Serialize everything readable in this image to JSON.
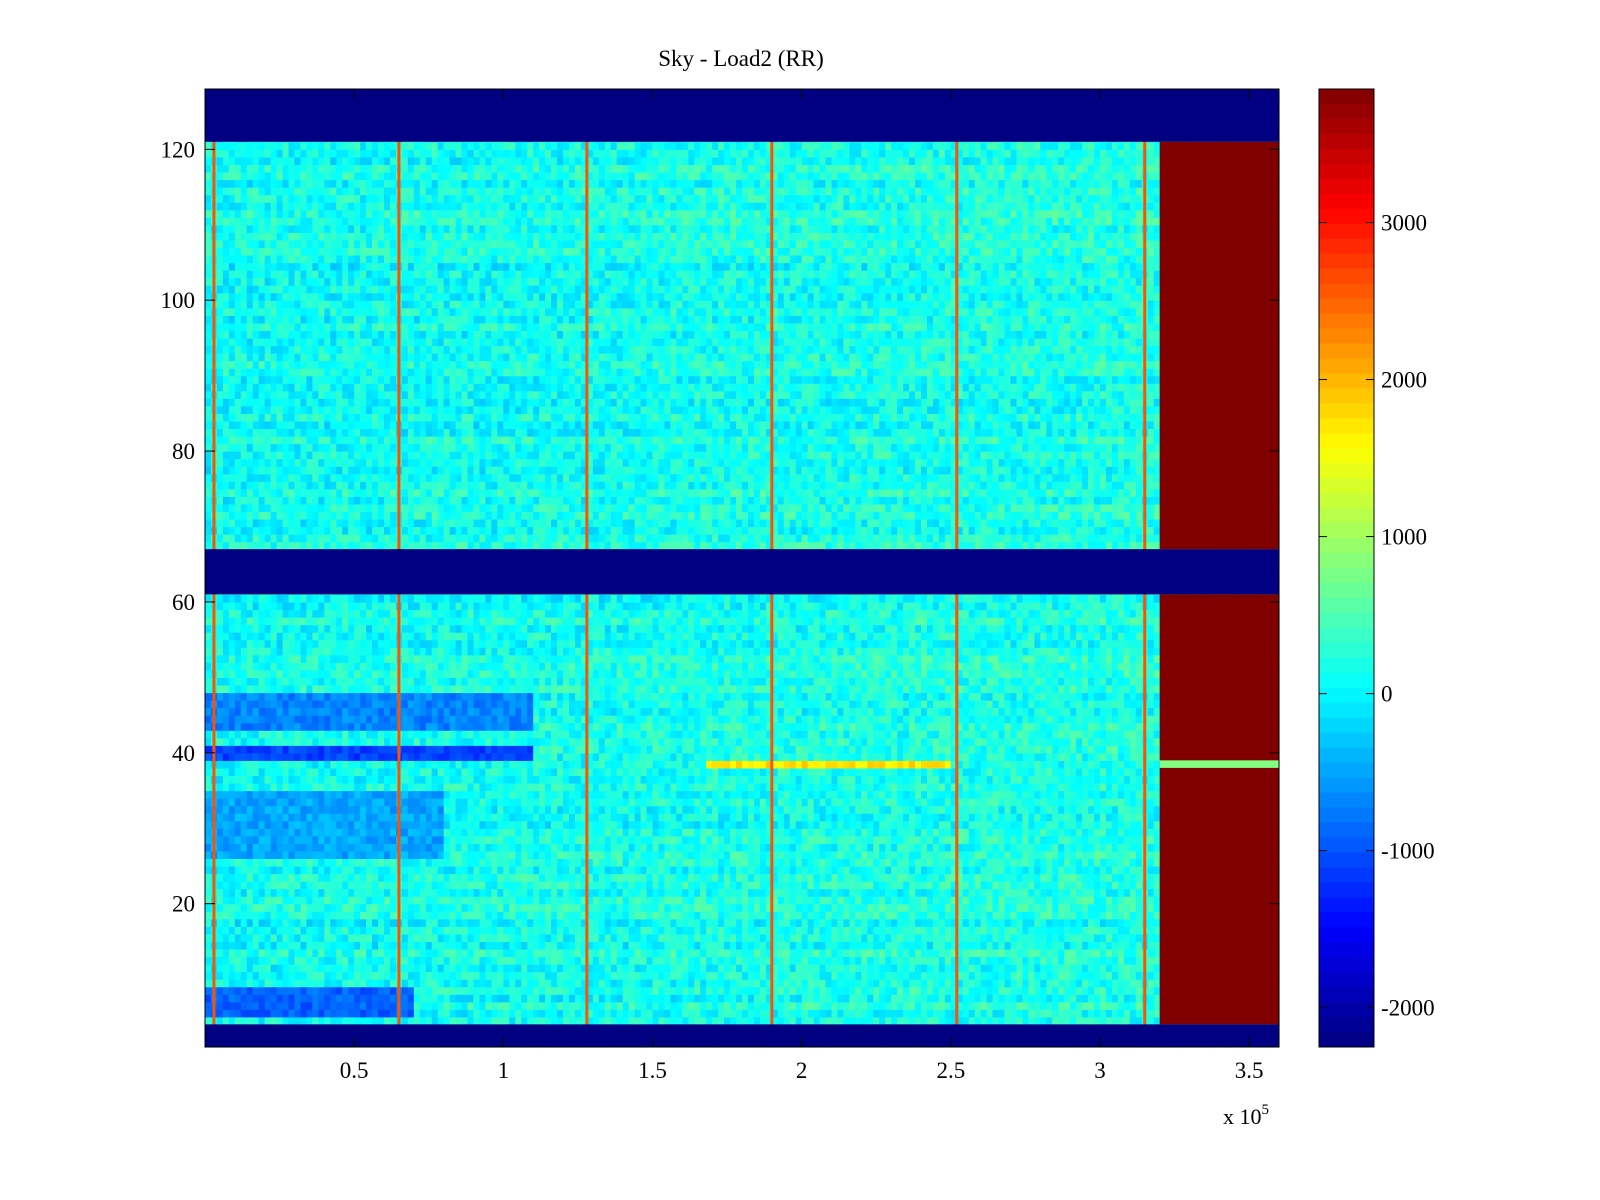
{
  "chart_data": {
    "type": "heatmap",
    "title": "Sky - Load2 (RR)",
    "xlabel": "",
    "ylabel": "",
    "x_exponent_label": "x 10",
    "x_exponent_power": "5",
    "xlim": [
      0,
      360000
    ],
    "ylim": [
      1,
      128
    ],
    "x_ticks": [
      {
        "value": 50000,
        "label": "0.5"
      },
      {
        "value": 100000,
        "label": "1"
      },
      {
        "value": 150000,
        "label": "1.5"
      },
      {
        "value": 200000,
        "label": "2"
      },
      {
        "value": 250000,
        "label": "2.5"
      },
      {
        "value": 300000,
        "label": "3"
      },
      {
        "value": 350000,
        "label": "3.5"
      }
    ],
    "y_ticks": [
      {
        "value": 20,
        "label": "20"
      },
      {
        "value": 40,
        "label": "40"
      },
      {
        "value": 60,
        "label": "60"
      },
      {
        "value": 80,
        "label": "80"
      },
      {
        "value": 100,
        "label": "100"
      },
      {
        "value": 120,
        "label": "120"
      }
    ],
    "colorbar": {
      "colormap": "jet",
      "clim": [
        -2250,
        3850
      ],
      "ticks": [
        {
          "value": -2000,
          "label": "-2000"
        },
        {
          "value": -1000,
          "label": "-1000"
        },
        {
          "value": 0,
          "label": "0"
        },
        {
          "value": 1000,
          "label": "1000"
        },
        {
          "value": 2000,
          "label": "2000"
        },
        {
          "value": 3000,
          "label": "3000"
        }
      ]
    },
    "regions": [
      {
        "name": "masked-top",
        "x": [
          0,
          360000
        ],
        "y": [
          121,
          128
        ],
        "value": -2250
      },
      {
        "name": "masked-middle",
        "x": [
          0,
          360000
        ],
        "y": [
          61,
          67
        ],
        "value": -2250
      },
      {
        "name": "masked-bottom",
        "x": [
          0,
          360000
        ],
        "y": [
          1,
          4
        ],
        "value": -2250
      },
      {
        "name": "saturated-upper",
        "x": [
          320000,
          360000
        ],
        "y": [
          67,
          121
        ],
        "value": 3850
      },
      {
        "name": "saturated-lower",
        "x": [
          320000,
          360000
        ],
        "y": [
          4,
          61
        ],
        "value": 3850
      }
    ],
    "background_level": 100,
    "spike_x": [
      3000,
      65000,
      128000,
      190000,
      252000,
      315000
    ],
    "spike_value": 2600,
    "low_bands": [
      {
        "y": [
          39,
          41
        ],
        "x": [
          0,
          110000
        ],
        "value": -1100
      },
      {
        "y": [
          43,
          48
        ],
        "x": [
          0,
          110000
        ],
        "value": -700
      },
      {
        "y": [
          5,
          9
        ],
        "x": [
          0,
          70000
        ],
        "value": -900
      },
      {
        "y": [
          26,
          35
        ],
        "x": [
          0,
          80000
        ],
        "value": -500
      }
    ],
    "high_segments": [
      {
        "y": [
          38,
          39
        ],
        "x": [
          168000,
          250000
        ],
        "value": 1700
      },
      {
        "y": [
          38,
          39
        ],
        "x": [
          320000,
          360000
        ],
        "value": 800
      }
    ]
  }
}
